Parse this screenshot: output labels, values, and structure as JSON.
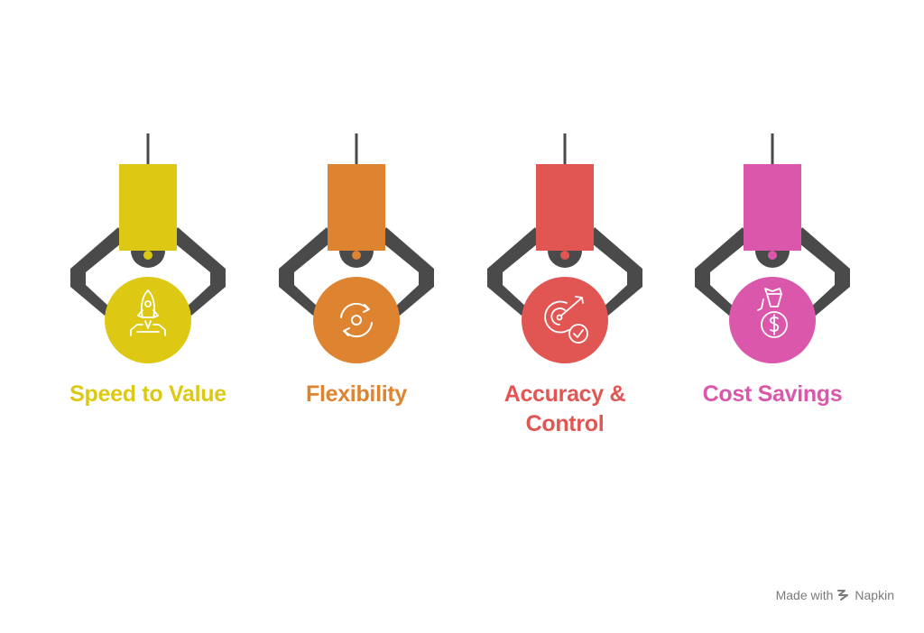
{
  "items": [
    {
      "label": "Speed to Value",
      "color": "#DDC914",
      "icon": "rocket-launch-icon"
    },
    {
      "label": "Flexibility",
      "color": "#DE8330",
      "icon": "cycle-arrows-icon"
    },
    {
      "label": "Accuracy &\nControl",
      "color": "#E15653",
      "icon": "target-check-icon"
    },
    {
      "label": "Cost Savings",
      "color": "#DB57AB",
      "icon": "money-bag-icon"
    }
  ],
  "arm_color": "#4A4A4A",
  "footer": {
    "made_with": "Made with",
    "brand": "Napkin"
  }
}
